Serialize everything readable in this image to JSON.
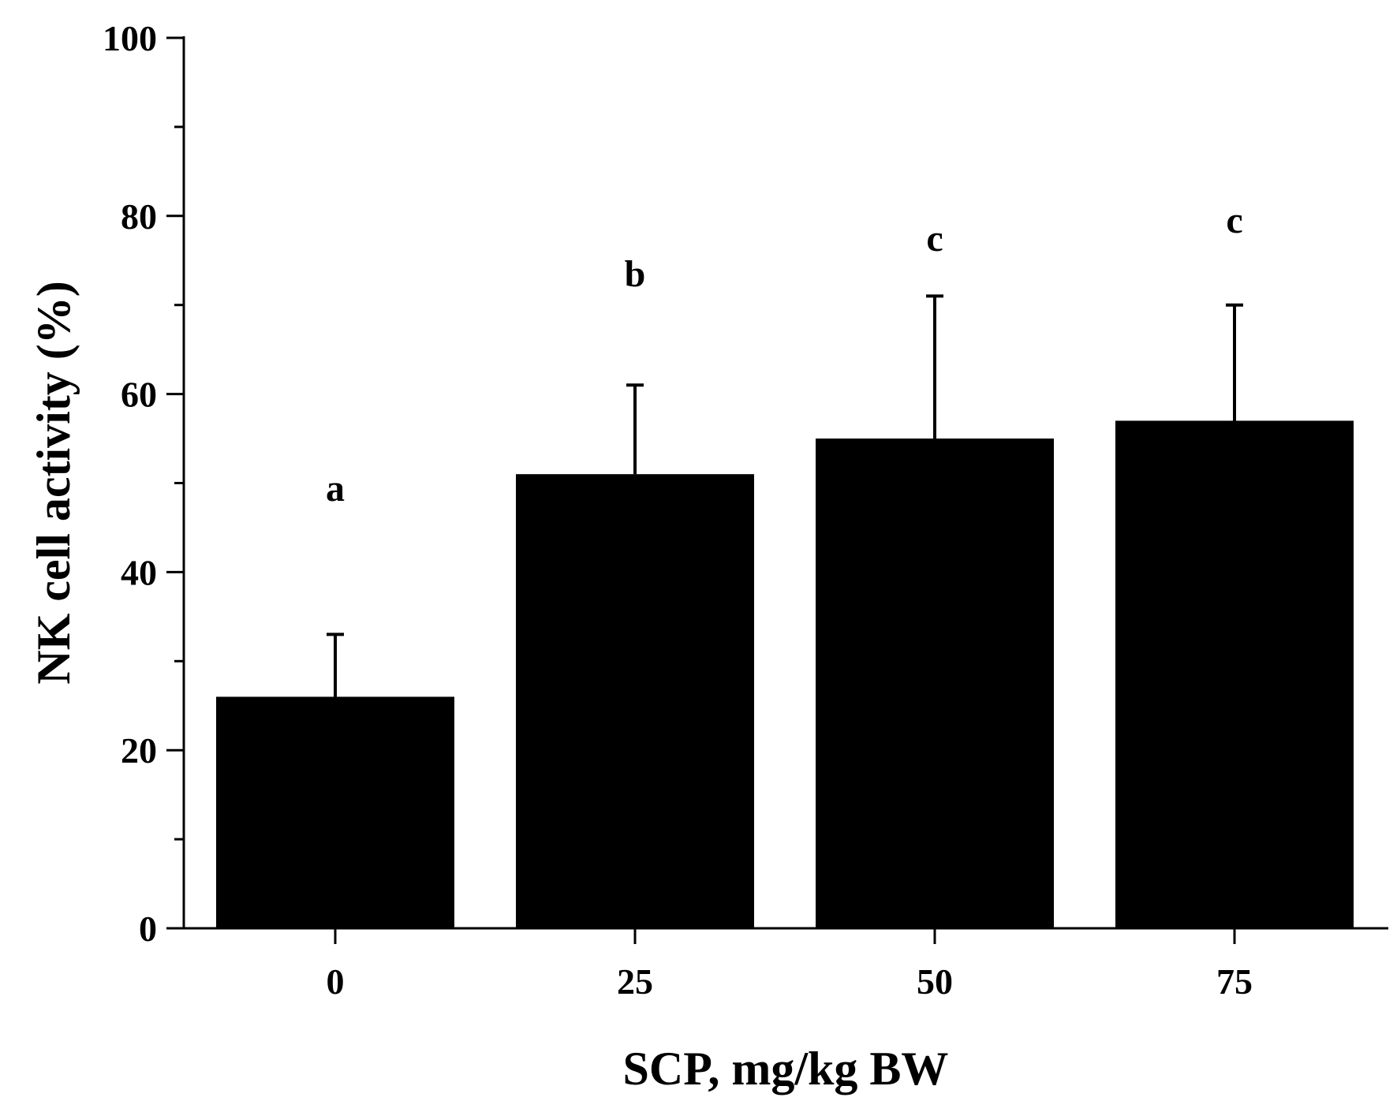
{
  "chart_data": {
    "type": "bar",
    "categories": [
      "0",
      "25",
      "50",
      "75"
    ],
    "values": [
      26,
      51,
      55,
      57
    ],
    "error_upper": [
      33,
      61,
      71,
      70
    ],
    "significance_labels": [
      "a",
      "b",
      "c",
      "c"
    ],
    "xlabel": "SCP, mg/kg BW",
    "ylabel": "NK cell activity (%)",
    "ylim": [
      0,
      100
    ],
    "yticks": [
      0,
      20,
      40,
      60,
      80,
      100
    ],
    "yticks_minor": [
      10,
      30,
      50,
      70,
      90
    ],
    "grid": false,
    "bar_color": "#000000"
  }
}
